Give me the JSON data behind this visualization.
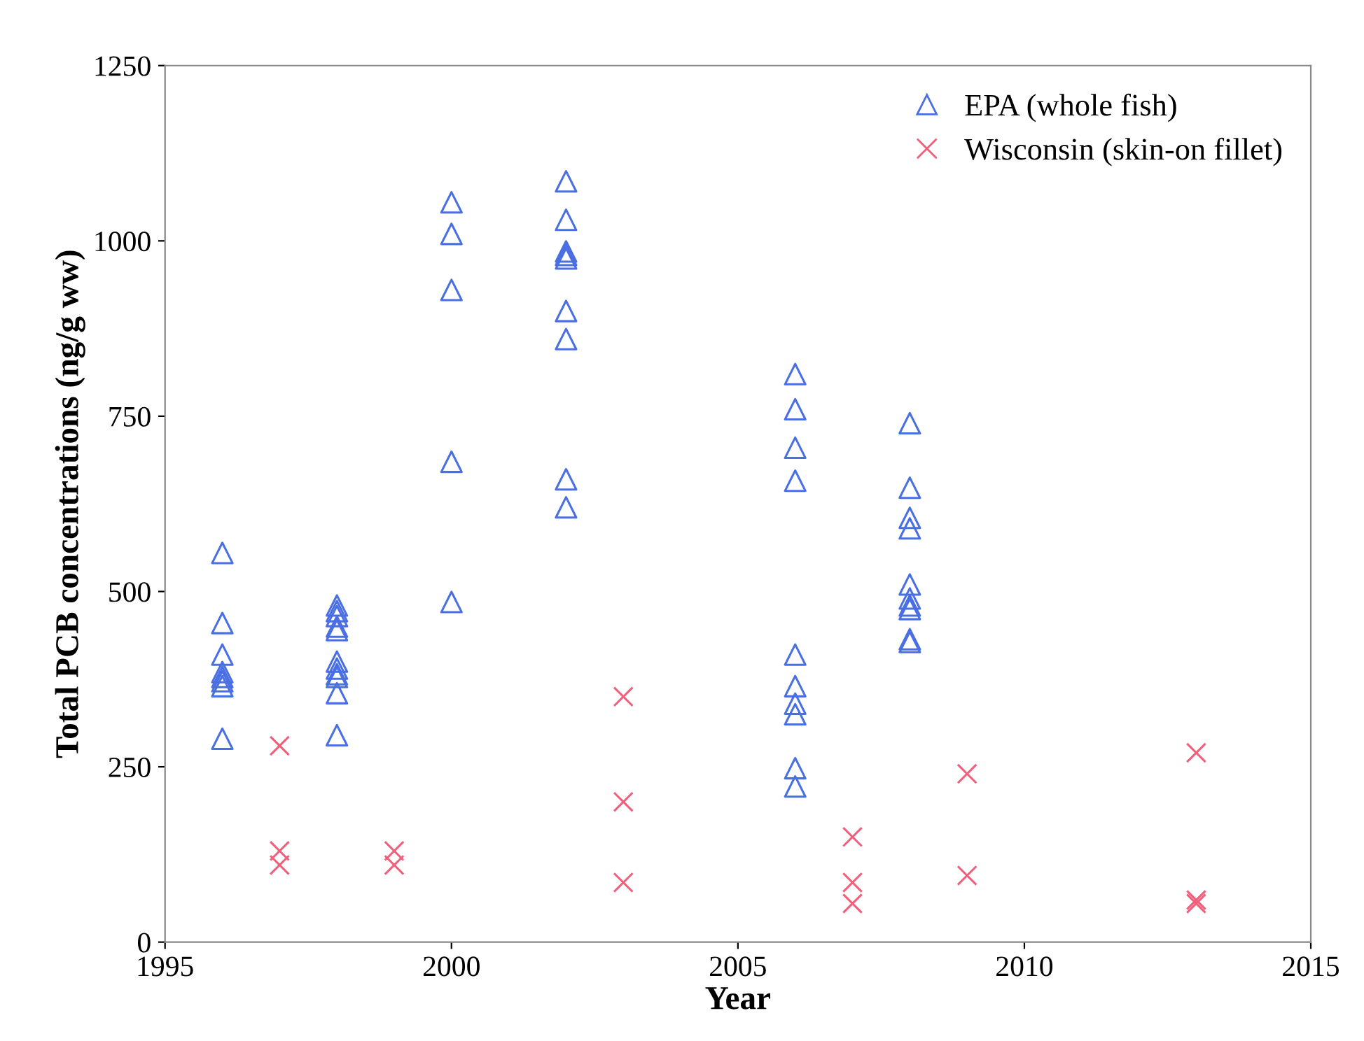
{
  "chart_data": {
    "type": "scatter",
    "xlabel": "Year",
    "ylabel": "Total PCB concentrations (ng/g ww)",
    "xlim": [
      1995,
      2015
    ],
    "xticks": [
      1995,
      2000,
      2005,
      2010,
      2015
    ],
    "ylim": [
      0,
      1250
    ],
    "yticks": [
      0,
      250,
      500,
      750,
      1000,
      1250
    ],
    "grid": false,
    "legend": "top right",
    "series": [
      {
        "name": "EPA (whole fish)",
        "color": "#4a6fe3",
        "marker": "triangle",
        "x": [
          1996,
          1996,
          1996,
          1996,
          1996,
          1996,
          1996,
          1996,
          1998,
          1998,
          1998,
          1998,
          1998,
          1998,
          1998,
          1998,
          1998,
          1998,
          1998,
          2000,
          2000,
          2000,
          2000,
          2000,
          2002,
          2002,
          2002,
          2002,
          2002,
          2002,
          2002,
          2002,
          2002,
          2006,
          2006,
          2006,
          2006,
          2006,
          2006,
          2006,
          2006,
          2006,
          2006,
          2008,
          2008,
          2008,
          2008,
          2008,
          2008,
          2008,
          2008,
          2008,
          2008
        ],
        "values": [
          555,
          455,
          410,
          385,
          378,
          372,
          365,
          290,
          480,
          472,
          465,
          450,
          445,
          400,
          390,
          382,
          378,
          355,
          295,
          1055,
          1010,
          930,
          685,
          485,
          1085,
          1030,
          985,
          980,
          975,
          900,
          860,
          660,
          620,
          810,
          760,
          705,
          658,
          410,
          365,
          340,
          325,
          248,
          222,
          740,
          648,
          605,
          590,
          510,
          490,
          480,
          475,
          432,
          428
        ]
      },
      {
        "name": "Wisconsin (skin-on fillet)",
        "color": "#f0607a",
        "marker": "cross",
        "x": [
          1997,
          1997,
          1997,
          1999,
          1999,
          2003,
          2003,
          2003,
          2007,
          2007,
          2007,
          2009,
          2009,
          2013,
          2013,
          2013
        ],
        "values": [
          280,
          130,
          110,
          130,
          110,
          350,
          200,
          85,
          150,
          85,
          55,
          240,
          95,
          270,
          60,
          55
        ]
      }
    ]
  }
}
